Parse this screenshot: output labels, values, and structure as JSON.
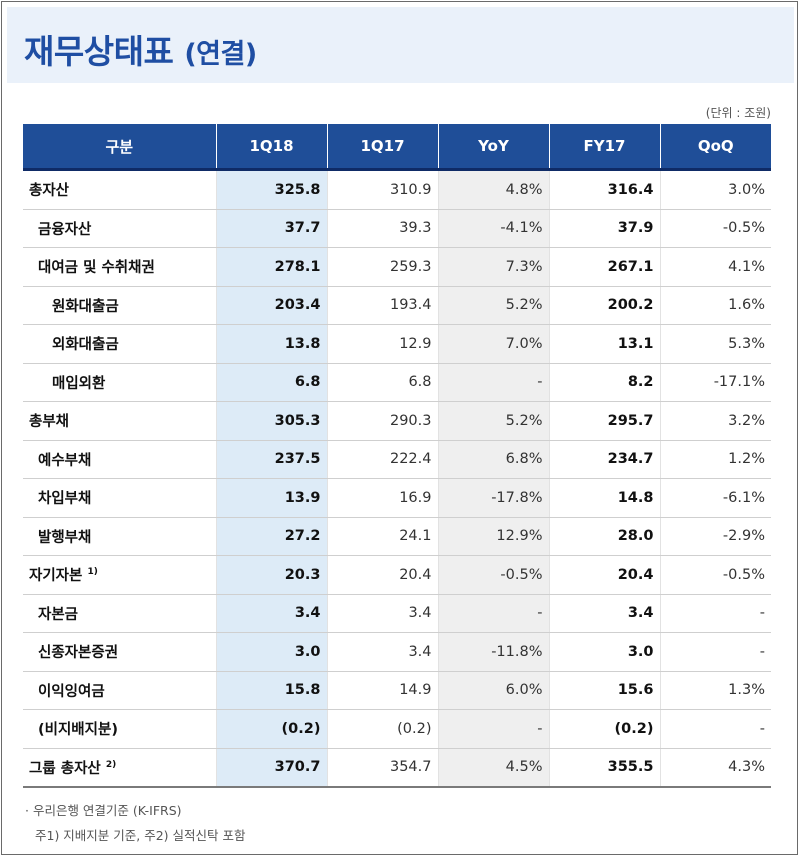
{
  "title": {
    "main": "재무상태표",
    "sub": "(연결)"
  },
  "unit_label": "(단위 : 조원)",
  "table": {
    "headers": [
      "구분",
      "1Q18",
      "1Q17",
      "YoY",
      "FY17",
      "QoQ"
    ],
    "rows": [
      {
        "label": "총자산",
        "level": 0,
        "note": "",
        "values": [
          "325.8",
          "310.9",
          "4.8%",
          "316.4",
          "3.0%"
        ]
      },
      {
        "label": "금융자산",
        "level": 1,
        "note": "",
        "values": [
          "37.7",
          "39.3",
          "-4.1%",
          "37.9",
          "-0.5%"
        ]
      },
      {
        "label": "대여금 및 수취채권",
        "level": 1,
        "note": "",
        "values": [
          "278.1",
          "259.3",
          "7.3%",
          "267.1",
          "4.1%"
        ]
      },
      {
        "label": "원화대출금",
        "level": 2,
        "note": "",
        "values": [
          "203.4",
          "193.4",
          "5.2%",
          "200.2",
          "1.6%"
        ]
      },
      {
        "label": "외화대출금",
        "level": 2,
        "note": "",
        "values": [
          "13.8",
          "12.9",
          "7.0%",
          "13.1",
          "5.3%"
        ]
      },
      {
        "label": "매입외환",
        "level": 2,
        "note": "",
        "values": [
          "6.8",
          "6.8",
          "-",
          "8.2",
          "-17.1%"
        ]
      },
      {
        "label": "총부채",
        "level": 0,
        "note": "",
        "values": [
          "305.3",
          "290.3",
          "5.2%",
          "295.7",
          "3.2%"
        ]
      },
      {
        "label": "예수부채",
        "level": 1,
        "note": "",
        "values": [
          "237.5",
          "222.4",
          "6.8%",
          "234.7",
          "1.2%"
        ]
      },
      {
        "label": "차입부채",
        "level": 1,
        "note": "",
        "values": [
          "13.9",
          "16.9",
          "-17.8%",
          "14.8",
          "-6.1%"
        ]
      },
      {
        "label": "발행부채",
        "level": 1,
        "note": "",
        "values": [
          "27.2",
          "24.1",
          "12.9%",
          "28.0",
          "-2.9%"
        ]
      },
      {
        "label": "자기자본",
        "level": 0,
        "note": "1)",
        "values": [
          "20.3",
          "20.4",
          "-0.5%",
          "20.4",
          "-0.5%"
        ]
      },
      {
        "label": "자본금",
        "level": 1,
        "note": "",
        "values": [
          "3.4",
          "3.4",
          "-",
          "3.4",
          "-"
        ]
      },
      {
        "label": "신종자본증권",
        "level": 1,
        "note": "",
        "values": [
          "3.0",
          "3.4",
          "-11.8%",
          "3.0",
          "-"
        ]
      },
      {
        "label": "이익잉여금",
        "level": 1,
        "note": "",
        "values": [
          "15.8",
          "14.9",
          "6.0%",
          "15.6",
          "1.3%"
        ]
      },
      {
        "label": "(비지배지분)",
        "level": 1,
        "note": "",
        "values": [
          "(0.2)",
          "(0.2)",
          "-",
          "(0.2)",
          "-"
        ]
      },
      {
        "label": "그룹 총자산",
        "level": 0,
        "note": "2)",
        "values": [
          "370.7",
          "354.7",
          "4.5%",
          "355.5",
          "4.3%"
        ]
      }
    ]
  },
  "notes": {
    "line1": "·  우리은행 연결기준 (K-IFRS)",
    "line2": "주1) 지배지분 기준, 주2) 실적신탁 포함"
  },
  "colors": {
    "title": "#1f4ea3",
    "title_background": "#eaf1fa",
    "header_background": "#1f4e98",
    "highlight_1Q18": "#ddebf7",
    "highlight_YoY": "#efefef"
  }
}
